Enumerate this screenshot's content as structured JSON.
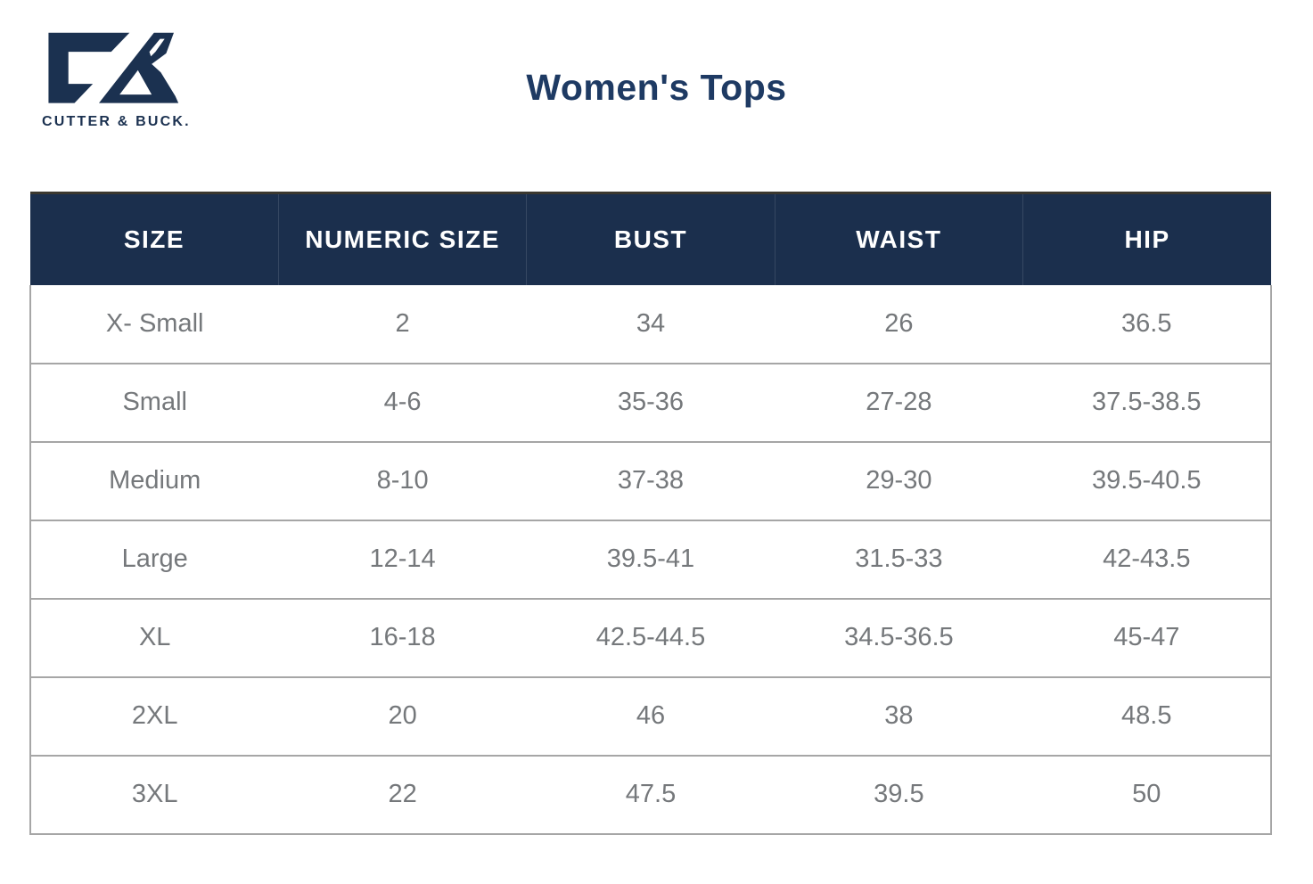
{
  "brand": {
    "wordmark": "CUTTER & BUCK.",
    "monogram_icon": "cutter-buck-cb-monogram"
  },
  "title": "Women's Tops",
  "size_chart": {
    "columns": [
      "SIZE",
      "NUMERIC SIZE",
      "BUST",
      "WAIST",
      "HIP"
    ],
    "rows": [
      [
        "X- Small",
        "2",
        "34",
        "26",
        "36.5"
      ],
      [
        "Small",
        "4-6",
        "35-36",
        "27-28",
        "37.5-38.5"
      ],
      [
        "Medium",
        "8-10",
        "37-38",
        "29-30",
        "39.5-40.5"
      ],
      [
        "Large",
        "12-14",
        "39.5-41",
        "31.5-33",
        "42-43.5"
      ],
      [
        "XL",
        "16-18",
        "42.5-44.5",
        "34.5-36.5",
        "45-47"
      ],
      [
        "2XL",
        "20",
        "46",
        "38",
        "48.5"
      ],
      [
        "3XL",
        "22",
        "47.5",
        "39.5",
        "50"
      ]
    ]
  },
  "colors": {
    "navy_logo": "#1b3150",
    "navy_title": "#1e3a63",
    "header_background": "#1b2f4d",
    "header_text": "#ffffff",
    "cell_text": "#75787b",
    "table_border": "#a6a6a6"
  }
}
